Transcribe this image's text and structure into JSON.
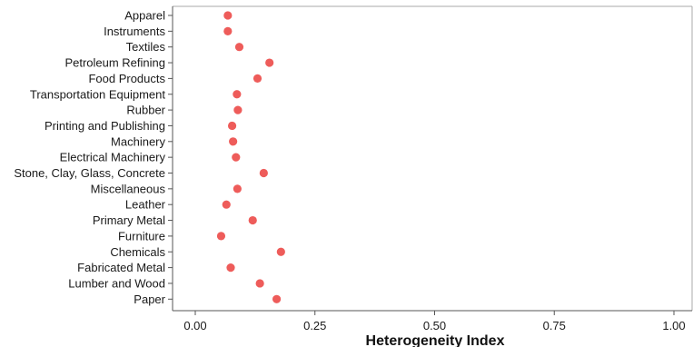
{
  "chart_data": {
    "type": "scatter",
    "xlabel": "Heterogeneity Index",
    "ylabel": "",
    "xlim": [
      0,
      1
    ],
    "xticks": [
      0,
      0.25,
      0.5,
      0.75,
      1
    ],
    "xtick_labels": [
      "0.00",
      "0.25",
      "0.50",
      "0.75",
      "1.00"
    ],
    "grid": false,
    "categories": [
      "Apparel",
      "Instruments",
      "Textiles",
      "Petroleum Refining",
      "Food Products",
      "Transportation Equipment",
      "Rubber",
      "Printing and Publishing",
      "Machinery",
      "Electrical Machinery",
      "Stone, Clay, Glass, Concrete",
      "Miscellaneous",
      "Leather",
      "Primary Metal",
      "Furniture",
      "Chemicals",
      "Fabricated Metal",
      "Lumber and Wood",
      "Paper"
    ],
    "values": [
      0.068,
      0.068,
      0.092,
      0.155,
      0.13,
      0.087,
      0.089,
      0.077,
      0.079,
      0.085,
      0.143,
      0.088,
      0.065,
      0.12,
      0.054,
      0.179,
      0.074,
      0.135,
      0.17
    ],
    "marker_color": "#ee5c5a",
    "axis_color": "#555555"
  }
}
